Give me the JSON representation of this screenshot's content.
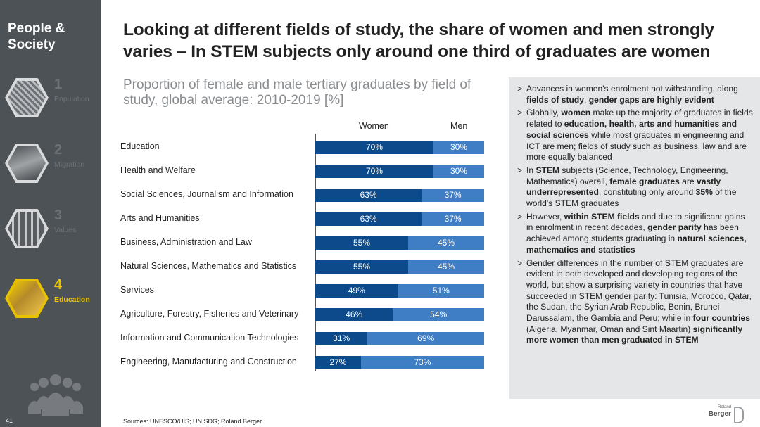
{
  "sidebar": {
    "title": "People &\nSociety",
    "sections": [
      {
        "num": "1",
        "label": "Population",
        "active": false
      },
      {
        "num": "2",
        "label": "Migration",
        "active": false
      },
      {
        "num": "3",
        "label": "Values",
        "active": false
      },
      {
        "num": "4",
        "label": "Education",
        "active": true
      }
    ],
    "page_number": "41"
  },
  "headline": "Looking at different fields of study, the share of women and men strongly varies – In STEM subjects only around one third of graduates are women",
  "subtitle": "Proportion of female and male tertiary graduates by field of study, global average: 2010-2019 [%]",
  "chart_data": {
    "type": "bar",
    "orientation": "horizontal",
    "stacked": true,
    "percent": true,
    "categories": [
      "Education",
      "Health and Welfare",
      "Social Sciences, Journalism and Information",
      "Arts and Humanities",
      "Business, Administration and Law",
      "Natural Sciences, Mathematics and Statistics",
      "Services",
      "Agriculture, Forestry, Fisheries and Veterinary",
      "Information and Communication Technologies",
      "Engineering, Manufacturing and Construction"
    ],
    "series": [
      {
        "name": "Women",
        "color": "#0d4a8c",
        "values": [
          70,
          70,
          63,
          63,
          55,
          55,
          49,
          46,
          31,
          27
        ]
      },
      {
        "name": "Men",
        "color": "#3f7ec4",
        "values": [
          30,
          30,
          37,
          37,
          45,
          45,
          51,
          54,
          69,
          73
        ]
      }
    ],
    "legend": "top",
    "xlim": [
      0,
      100
    ]
  },
  "bullets": [
    {
      "html": "Advances in women's enrolment not withstanding, along <b>fields of study</b>, <b>gender gaps are highly evident</b>"
    },
    {
      "html": "Globally, <b>women</b> make up the majority of graduates in fields related to <b>education, health, arts and humanities and social sciences</b> while most graduates in engineering and ICT are men; fields of study such as business, law and are more equally balanced"
    },
    {
      "html": "In <b>STEM</b> subjects (Science, Technology, Engineering, Mathematics) overall, <b>female graduates</b> are <b>vastly underrepresented</b>, constituting only around <b>35%</b> of the world's STEM graduates"
    },
    {
      "html": "However, <b>within STEM fields</b> and due to significant gains in enrolment in recent decades, <b>gender parity</b> has been achieved among students graduating in <b>natural sciences, mathematics and statistics</b>"
    },
    {
      "html": "Gender differences in the number of STEM graduates are evident in both developed and developing regions of the world, but show a surprising variety in countries that have succeeded in STEM gender parity: Tunisia, Morocco, Qatar, the Sudan, the Syrian Arab Republic, Benin, Brunei Darussalam, the Gambia and Peru; while in <b>four countries</b> (Algeria, Myanmar, Oman and Sint Maartin) <b>significantly more women than men graduated in STEM</b>"
    }
  ],
  "sources": "Sources: UNESCO/UIS; UN SDG; Roland Berger",
  "logo": {
    "small": "Roland",
    "text": "Berger"
  }
}
